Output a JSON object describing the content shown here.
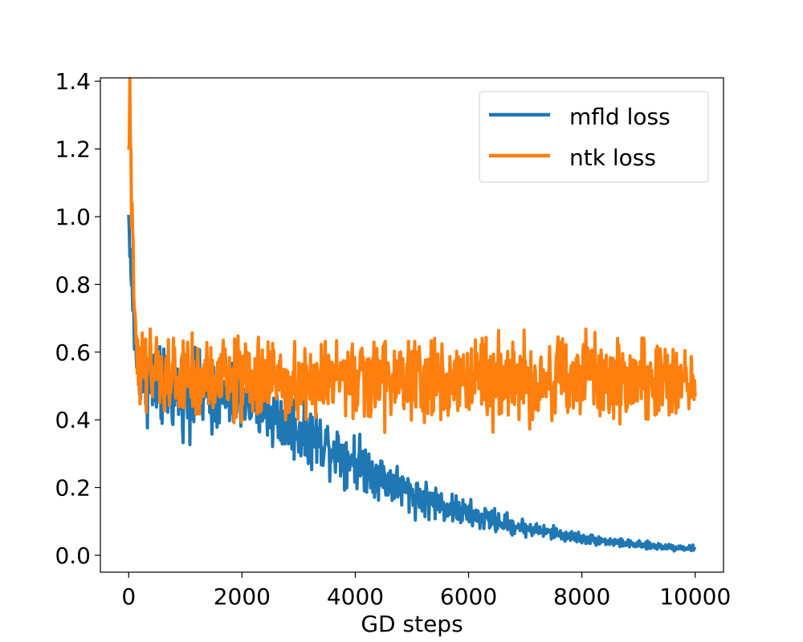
{
  "chart_data": {
    "type": "line",
    "title": "",
    "xlabel": "GD steps",
    "ylabel": "",
    "xlim": [
      -500,
      10500
    ],
    "ylim": [
      -0.05,
      1.41
    ],
    "xticks": [
      0,
      2000,
      4000,
      6000,
      8000,
      10000
    ],
    "xtick_labels": [
      "0",
      "2000",
      "4000",
      "6000",
      "8000",
      "10000"
    ],
    "yticks": [
      0.0,
      0.2,
      0.4,
      0.6,
      0.8,
      1.0,
      1.2,
      1.4
    ],
    "ytick_labels": [
      "0.0",
      "0.2",
      "0.4",
      "0.6",
      "0.8",
      "1.0",
      "1.2",
      "1.4"
    ],
    "grid": false,
    "legend_position": "upper right",
    "series": [
      {
        "name": "mfld loss",
        "color": "#1f77b4",
        "x": [
          0,
          50,
          100,
          150,
          200,
          300,
          400,
          500,
          700,
          1000,
          1500,
          2000,
          2500,
          3000,
          3500,
          4000,
          4500,
          5000,
          5500,
          6000,
          6500,
          7000,
          7500,
          8000,
          8500,
          9000,
          9500,
          10000
        ],
        "y": [
          1.0,
          0.8,
          0.65,
          0.58,
          0.54,
          0.51,
          0.5,
          0.49,
          0.49,
          0.48,
          0.47,
          0.46,
          0.42,
          0.37,
          0.33,
          0.28,
          0.23,
          0.18,
          0.15,
          0.12,
          0.1,
          0.08,
          0.065,
          0.05,
          0.04,
          0.03,
          0.025,
          0.02
        ],
        "noise": [
          0.02,
          0.04,
          0.05,
          0.06,
          0.06,
          0.07,
          0.07,
          0.07,
          0.07,
          0.07,
          0.07,
          0.06,
          0.06,
          0.06,
          0.05,
          0.05,
          0.04,
          0.035,
          0.03,
          0.025,
          0.02,
          0.015,
          0.012,
          0.01,
          0.008,
          0.007,
          0.006,
          0.005
        ]
      },
      {
        "name": "ntk loss",
        "color": "#ff7f0e",
        "x": [
          0,
          20,
          50,
          100,
          150,
          200,
          300,
          500,
          1000,
          2000,
          3000,
          4000,
          5000,
          6000,
          7000,
          8000,
          9000,
          10000
        ],
        "y": [
          1.18,
          1.3,
          1.05,
          0.75,
          0.62,
          0.57,
          0.54,
          0.52,
          0.52,
          0.52,
          0.52,
          0.52,
          0.52,
          0.52,
          0.52,
          0.52,
          0.52,
          0.52
        ],
        "noise": [
          0.05,
          0.06,
          0.07,
          0.07,
          0.07,
          0.075,
          0.075,
          0.075,
          0.075,
          0.075,
          0.075,
          0.075,
          0.075,
          0.075,
          0.075,
          0.075,
          0.075,
          0.075
        ]
      }
    ],
    "samples_per_series": 1000
  }
}
